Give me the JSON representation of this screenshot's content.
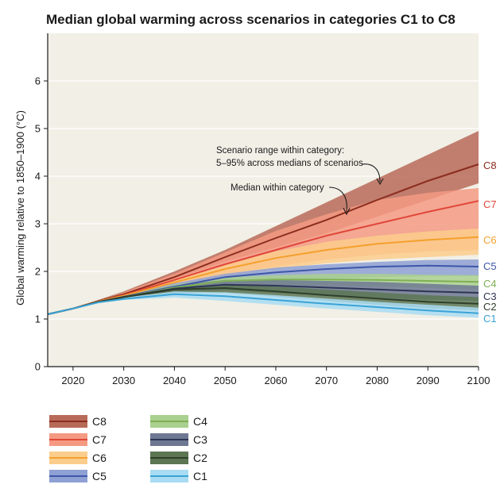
{
  "chart_data": {
    "type": "area",
    "title": "Median global warming across scenarios in categories C1 to C8",
    "ylabel": "Global warming relative to 1850–1900 (°C)",
    "xlabel": "",
    "xlim": [
      2015,
      2100
    ],
    "ylim": [
      0,
      7
    ],
    "x_ticks": [
      "2020",
      "2030",
      "2040",
      "2050",
      "2060",
      "2070",
      "2080",
      "2090",
      "2100"
    ],
    "y_ticks": [
      "0",
      "1",
      "2",
      "3",
      "4",
      "5",
      "6"
    ],
    "grid": "horizontal",
    "legend_position": "bottom-left",
    "x": [
      2015,
      2020,
      2025,
      2030,
      2040,
      2050,
      2060,
      2070,
      2080,
      2090,
      2100
    ],
    "series": [
      {
        "name": "C8",
        "color": "#8b2d1f",
        "fill": "#b86a58",
        "median": [
          1.1,
          1.22,
          1.38,
          1.52,
          1.88,
          2.3,
          2.7,
          3.08,
          3.5,
          3.9,
          4.25
        ],
        "low": [
          1.1,
          1.22,
          1.38,
          1.52,
          1.84,
          2.2,
          2.5,
          2.8,
          3.15,
          3.5,
          3.85
        ],
        "high": [
          1.1,
          1.22,
          1.4,
          1.58,
          2.0,
          2.45,
          2.95,
          3.45,
          3.95,
          4.45,
          4.95
        ]
      },
      {
        "name": "C7",
        "color": "#e0473a",
        "fill": "#f59a82",
        "median": [
          1.1,
          1.22,
          1.37,
          1.5,
          1.82,
          2.15,
          2.45,
          2.75,
          3.0,
          3.25,
          3.48
        ],
        "low": [
          1.1,
          1.22,
          1.36,
          1.48,
          1.73,
          1.95,
          2.1,
          2.25,
          2.35,
          2.42,
          2.45
        ],
        "high": [
          1.1,
          1.22,
          1.38,
          1.56,
          1.95,
          2.4,
          2.85,
          3.2,
          3.5,
          3.65,
          3.75
        ]
      },
      {
        "name": "C6",
        "color": "#f4a02d",
        "fill": "#fbcd8c",
        "median": [
          1.1,
          1.22,
          1.37,
          1.49,
          1.77,
          2.05,
          2.28,
          2.45,
          2.58,
          2.66,
          2.72
        ],
        "low": [
          1.1,
          1.22,
          1.36,
          1.47,
          1.7,
          1.9,
          2.05,
          2.17,
          2.25,
          2.3,
          2.35
        ],
        "high": [
          1.1,
          1.22,
          1.38,
          1.53,
          1.84,
          2.15,
          2.42,
          2.62,
          2.75,
          2.84,
          2.9
        ]
      },
      {
        "name": "C5",
        "color": "#3e57a8",
        "fill": "#8ea0d4",
        "median": [
          1.1,
          1.22,
          1.36,
          1.47,
          1.68,
          1.88,
          1.98,
          2.05,
          2.1,
          2.12,
          2.1
        ],
        "low": [
          1.1,
          1.22,
          1.35,
          1.45,
          1.62,
          1.75,
          1.8,
          1.85,
          1.88,
          1.9,
          1.9
        ],
        "high": [
          1.1,
          1.22,
          1.37,
          1.5,
          1.75,
          1.95,
          2.08,
          2.15,
          2.2,
          2.24,
          2.25
        ]
      },
      {
        "name": "C4",
        "color": "#7fb055",
        "fill": "#a9d08e",
        "median": [
          1.1,
          1.22,
          1.36,
          1.46,
          1.66,
          1.8,
          1.83,
          1.83,
          1.82,
          1.8,
          1.78
        ],
        "low": [
          1.1,
          1.22,
          1.35,
          1.44,
          1.6,
          1.7,
          1.72,
          1.7,
          1.68,
          1.65,
          1.62
        ],
        "high": [
          1.1,
          1.22,
          1.37,
          1.49,
          1.72,
          1.88,
          1.92,
          1.95,
          1.95,
          1.93,
          1.92
        ]
      },
      {
        "name": "C3",
        "color": "#2d3654",
        "fill": "#6f7893",
        "median": [
          1.1,
          1.22,
          1.36,
          1.46,
          1.64,
          1.72,
          1.7,
          1.66,
          1.62,
          1.58,
          1.55
        ],
        "low": [
          1.1,
          1.22,
          1.35,
          1.43,
          1.56,
          1.6,
          1.55,
          1.5,
          1.45,
          1.4,
          1.38
        ],
        "high": [
          1.1,
          1.22,
          1.37,
          1.49,
          1.7,
          1.82,
          1.82,
          1.8,
          1.78,
          1.74,
          1.7
        ]
      },
      {
        "name": "C2",
        "color": "#2e3f2a",
        "fill": "#5c7553",
        "median": [
          1.1,
          1.22,
          1.36,
          1.46,
          1.62,
          1.65,
          1.58,
          1.5,
          1.43,
          1.36,
          1.32
        ],
        "low": [
          1.1,
          1.22,
          1.35,
          1.42,
          1.54,
          1.55,
          1.47,
          1.38,
          1.3,
          1.22,
          1.18
        ],
        "high": [
          1.1,
          1.22,
          1.37,
          1.48,
          1.68,
          1.72,
          1.68,
          1.62,
          1.56,
          1.5,
          1.46
        ]
      },
      {
        "name": "C1",
        "color": "#3aa3d6",
        "fill": "#a9dcf2",
        "median": [
          1.1,
          1.22,
          1.35,
          1.42,
          1.52,
          1.48,
          1.4,
          1.32,
          1.25,
          1.18,
          1.12
        ],
        "low": [
          1.1,
          1.22,
          1.34,
          1.4,
          1.45,
          1.38,
          1.3,
          1.22,
          1.15,
          1.08,
          1.03
        ],
        "high": [
          1.1,
          1.22,
          1.36,
          1.45,
          1.58,
          1.56,
          1.5,
          1.43,
          1.36,
          1.3,
          1.24
        ]
      }
    ],
    "annotations": [
      {
        "lines": [
          "Scenario range within category:",
          "5–95% across medians of scenarios"
        ]
      },
      {
        "lines": [
          "Median within category"
        ]
      }
    ],
    "colors": {
      "plot_background": "#f1efe6",
      "grid": "#ffffff",
      "axis": "#1a1a1a"
    }
  }
}
